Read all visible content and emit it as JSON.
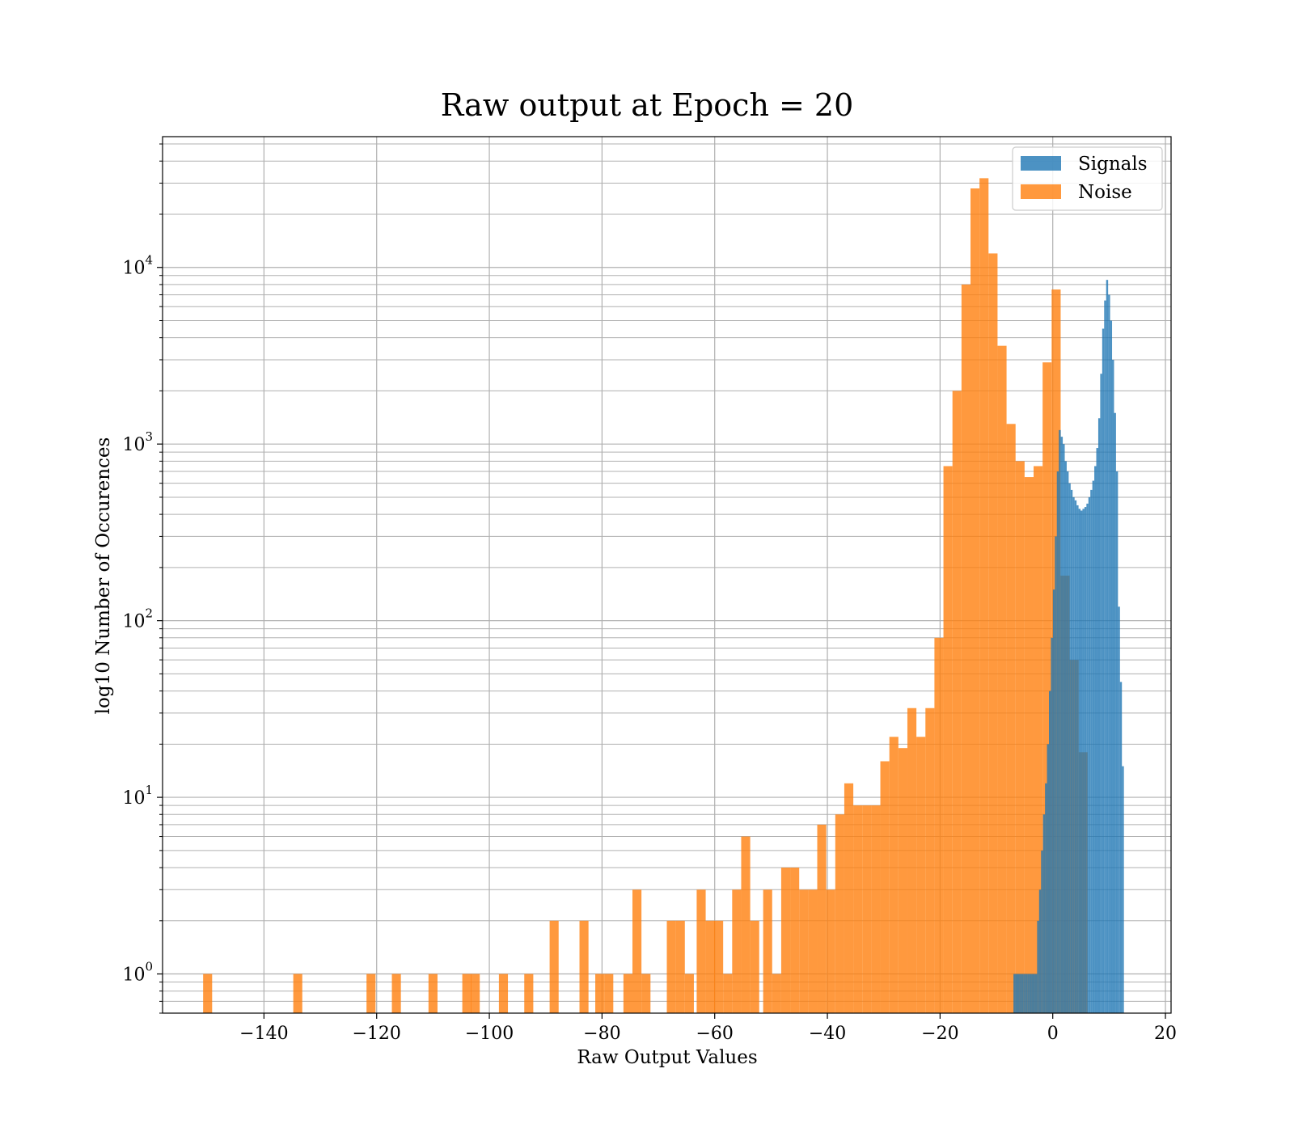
{
  "chart_data": {
    "type": "bar",
    "title": "Raw output at Epoch = 20",
    "xlabel": "Raw Output Values",
    "ylabel": "log10 Number of Occurences",
    "xlim": [
      -158,
      21
    ],
    "ylim": [
      0.6,
      55000
    ],
    "yscale": "log",
    "grid": true,
    "legend_position": "top-right",
    "x_ticks": [
      -140,
      -120,
      -100,
      -80,
      -60,
      -40,
      -20,
      0,
      20
    ],
    "x_tick_labels": [
      "−140",
      "−120",
      "−100",
      "−80",
      "−60",
      "−40",
      "−20",
      "0",
      "20"
    ],
    "y_ticks": [
      1,
      10,
      100,
      1000,
      10000
    ],
    "y_tick_base": "10",
    "y_tick_exponents": [
      "0",
      "1",
      "2",
      "3",
      "4"
    ],
    "series": [
      {
        "name": "Signals",
        "color": "#1f77b4",
        "opacity": 0.8,
        "bin_width": 0.35,
        "x": [
          -6.8,
          -6.45,
          -6.1,
          -5.75,
          -5.4,
          -5.05,
          -4.7,
          -4.35,
          -4.0,
          -3.65,
          -3.3,
          -2.95,
          -2.6,
          -2.25,
          -1.9,
          -1.55,
          -1.2,
          -0.85,
          -0.5,
          -0.15,
          0.2,
          0.55,
          0.9,
          1.25,
          1.6,
          1.95,
          2.3,
          2.65,
          3.0,
          3.35,
          3.7,
          4.05,
          4.4,
          4.75,
          5.1,
          5.45,
          5.8,
          6.15,
          6.5,
          6.85,
          7.2,
          7.55,
          7.9,
          8.25,
          8.6,
          8.95,
          9.3,
          9.65,
          10.0,
          10.35,
          10.7,
          11.05,
          11.4,
          11.75,
          12.1,
          12.45
        ],
        "values": [
          1,
          1,
          1,
          1,
          1,
          1,
          1,
          1,
          1,
          1,
          1,
          1,
          2,
          3,
          5,
          8,
          12,
          20,
          40,
          80,
          150,
          300,
          700,
          1200,
          1100,
          1000,
          800,
          700,
          600,
          550,
          500,
          480,
          450,
          430,
          420,
          430,
          440,
          460,
          500,
          550,
          620,
          750,
          950,
          1400,
          2500,
          4500,
          6500,
          8500,
          7000,
          5000,
          3000,
          1500,
          700,
          120,
          45,
          15
        ]
      },
      {
        "name": "Noise",
        "color": "#ff7f0e",
        "opacity": 0.8,
        "bin_width": 1.6,
        "x": [
          -150.0,
          -134.0,
          -121.0,
          -116.5,
          -110.0,
          -104.0,
          -102.5,
          -97.5,
          -93.0,
          -88.5,
          -83.2,
          -80.4,
          -78.8,
          -75.4,
          -73.8,
          -72.2,
          -67.7,
          -66.1,
          -64.5,
          -62.4,
          -60.8,
          -59.3,
          -57.7,
          -56.1,
          -54.5,
          -52.9,
          -50.6,
          -49.0,
          -47.4,
          -45.8,
          -44.2,
          -42.6,
          -41.0,
          -39.4,
          -37.8,
          -36.2,
          -34.6,
          -33.0,
          -31.4,
          -29.8,
          -28.2,
          -26.6,
          -25.0,
          -23.4,
          -21.8,
          -20.2,
          -18.6,
          -17.0,
          -15.4,
          -13.8,
          -12.2,
          -10.6,
          -9.0,
          -7.4,
          -5.8,
          -4.2,
          -2.6,
          -1.0,
          0.6,
          2.2,
          3.8,
          5.4
        ],
        "values": [
          1,
          1,
          1,
          1,
          1,
          1,
          1,
          1,
          1,
          2,
          2,
          1,
          1,
          1,
          3,
          1,
          2,
          2,
          1,
          3,
          2,
          2,
          1,
          3,
          6,
          2,
          3,
          1,
          4,
          4,
          3,
          3,
          7,
          3,
          8,
          12,
          9,
          9,
          9,
          16,
          22,
          19,
          32,
          22,
          32,
          80,
          750,
          2000,
          8000,
          28000,
          32000,
          12000,
          3600,
          1300,
          800,
          650,
          750,
          2900,
          7500,
          180,
          60,
          18
        ]
      }
    ]
  }
}
